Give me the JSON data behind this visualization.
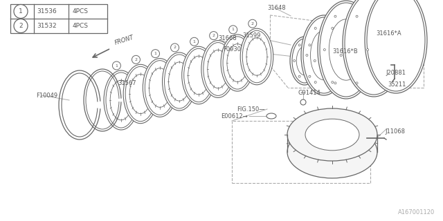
{
  "bg_color": "#ffffff",
  "line_color": "#aaaaaa",
  "dark_line": "#666666",
  "text_color": "#555555",
  "title_text": "A167001120",
  "legend": {
    "items": [
      {
        "num": "1",
        "part": "31536",
        "qty": "4PCS"
      },
      {
        "num": "2",
        "part": "31532",
        "qty": "4PCS"
      }
    ]
  }
}
